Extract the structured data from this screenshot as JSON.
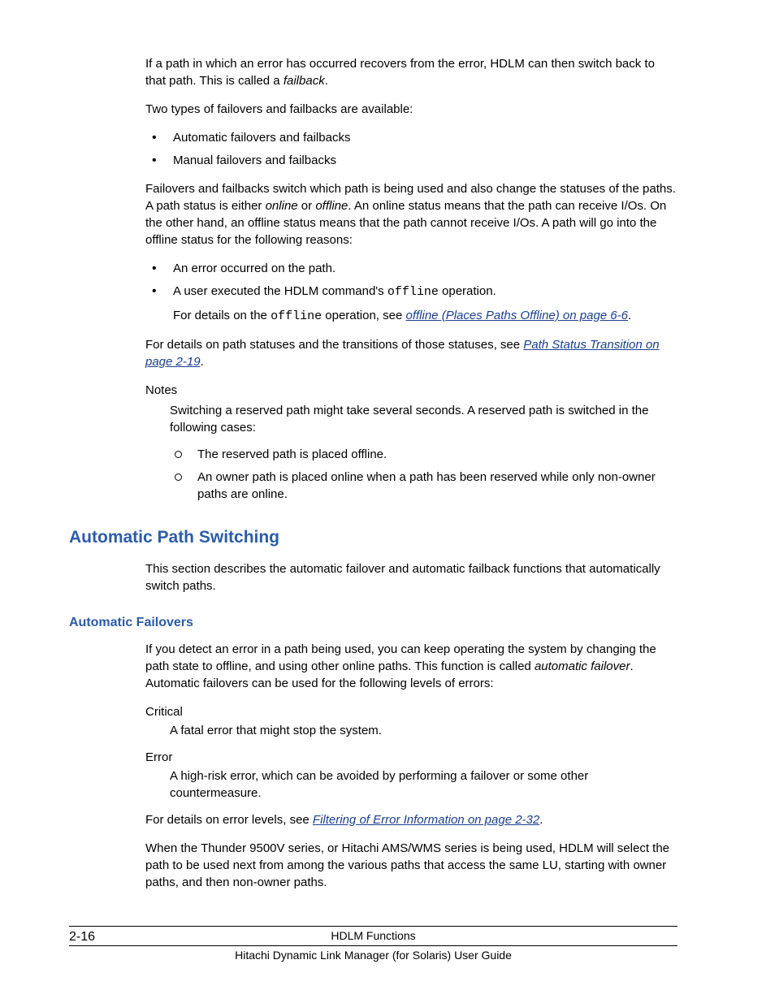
{
  "p1_a": "If a path in which an error has occurred recovers from the error, HDLM can then switch back to that path. This is called a ",
  "p1_b": "failback",
  "p1_c": ".",
  "p2": "Two types of failovers and failbacks are available:",
  "list1": {
    "i0": "Automatic failovers and failbacks",
    "i1": "Manual failovers and failbacks"
  },
  "p3_a": "Failovers and failbacks switch which path is being used and also change the statuses of the paths. A path status is either ",
  "p3_b": "online",
  "p3_c": " or ",
  "p3_d": "offline",
  "p3_e": ". An online status means that the path can receive I/Os. On the other hand, an offline status means that the path cannot receive I/Os. A path will go into the offline status for the following reasons:",
  "list2": {
    "i0": "An error occurred on the path.",
    "i1_a": "A user executed the HDLM command's ",
    "i1_b": "offline",
    "i1_c": " operation.",
    "sub_a": "For details on the ",
    "sub_b": "offline",
    "sub_c": " operation, see ",
    "sub_link": "offline (Places Paths Offline) on page 6-6",
    "sub_d": "."
  },
  "p4_a": "For details on path statuses and the transitions of those statuses, see ",
  "p4_link": "Path Status Transition on page 2-19",
  "p4_b": ".",
  "notes_label": "Notes",
  "notes_body": "Switching a reserved path might take several seconds. A reserved path is switched in the following cases:",
  "list3": {
    "i0": "The reserved path is placed offline.",
    "i1": "An owner path is placed online when a path has been reserved while only non-owner paths are online."
  },
  "h2": "Automatic Path Switching",
  "p5": "This section describes the automatic failover and automatic failback functions that automatically switch paths.",
  "h3": "Automatic Failovers",
  "p6_a": "If you detect an error in a path being used, you can keep operating the system by changing the path state to offline, and using other online paths. This function is called ",
  "p6_b": "automatic failover",
  "p6_c": ". Automatic failovers can be used for the following levels of errors:",
  "def1_term": "Critical",
  "def1_body": "A fatal error that might stop the system.",
  "def2_term": "Error",
  "def2_body": "A high-risk error, which can be avoided by performing a failover or some other countermeasure.",
  "p7_a": "For details on error levels, see ",
  "p7_link": "Filtering of Error Information on page 2-32",
  "p7_b": ".",
  "p8": "When the Thunder 9500V series, or Hitachi AMS/WMS series is being used, HDLM will select the path to be used next from among the various paths that access the same LU, starting with owner paths, and then non-owner paths.",
  "footer": {
    "page": "2-16",
    "line1": "HDLM Functions",
    "line2": "Hitachi Dynamic Link Manager (for Solaris) User Guide"
  }
}
